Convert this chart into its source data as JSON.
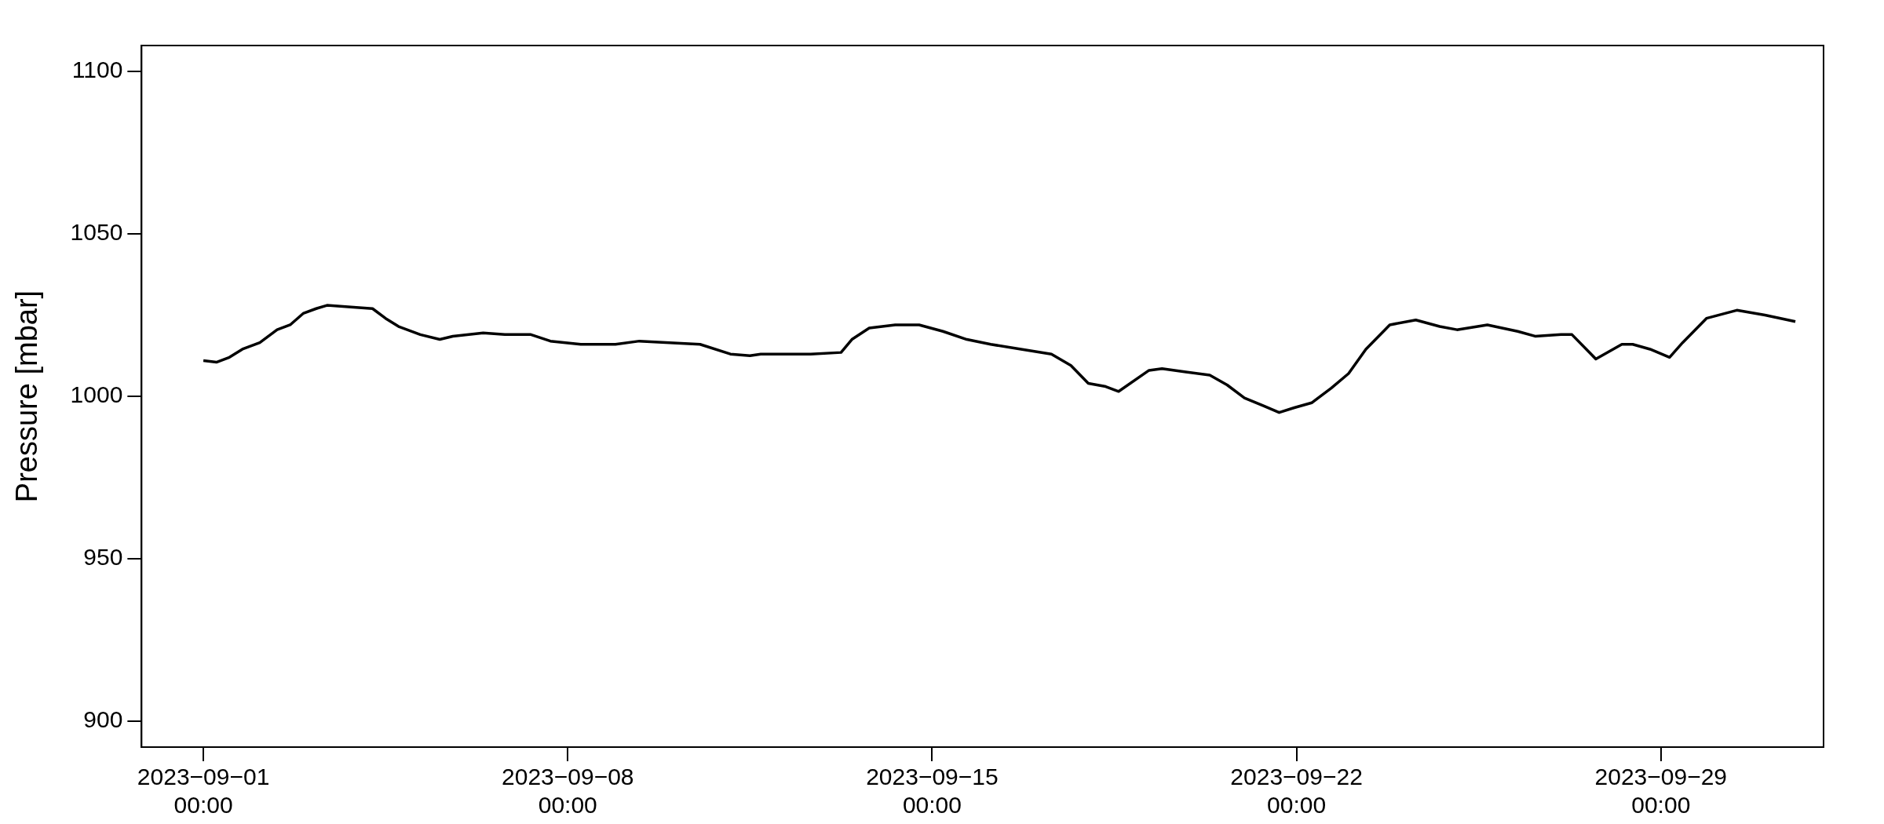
{
  "chart_data": {
    "type": "line",
    "ylabel": "Pressure [mbar]",
    "x": [
      "2023-09-01T00:00",
      "2023-09-01T06:00",
      "2023-09-01T12:00",
      "2023-09-01T18:00",
      "2023-09-02T02:00",
      "2023-09-02T10:00",
      "2023-09-02T16:00",
      "2023-09-02T22:00",
      "2023-09-03T04:00",
      "2023-09-03T09:00",
      "2023-09-03T20:00",
      "2023-09-04T06:00",
      "2023-09-04T12:00",
      "2023-09-04T18:00",
      "2023-09-05T04:00",
      "2023-09-05T13:00",
      "2023-09-05T19:00",
      "2023-09-06T09:00",
      "2023-09-06T19:00",
      "2023-09-07T07:00",
      "2023-09-07T16:00",
      "2023-09-08T06:00",
      "2023-09-08T22:00",
      "2023-09-09T09:00",
      "2023-09-09T23:00",
      "2023-09-10T13:00",
      "2023-09-11T03:00",
      "2023-09-11T12:00",
      "2023-09-11T17:00",
      "2023-09-12T05:00",
      "2023-09-12T16:00",
      "2023-09-13T06:00",
      "2023-09-13T11:00",
      "2023-09-13T19:00",
      "2023-09-14T07:00",
      "2023-09-14T18:00",
      "2023-09-15T05:00",
      "2023-09-15T16:00",
      "2023-09-16T03:00",
      "2023-09-16T17:00",
      "2023-09-17T07:00",
      "2023-09-17T16:00",
      "2023-09-18T00:00",
      "2023-09-18T08:00",
      "2023-09-18T14:00",
      "2023-09-19T04:00",
      "2023-09-19T10:00",
      "2023-09-19T21:00",
      "2023-09-20T08:00",
      "2023-09-20T16:00",
      "2023-09-21T00:00",
      "2023-09-21T09:00",
      "2023-09-21T16:00",
      "2023-09-21T23:00",
      "2023-09-22T07:00",
      "2023-09-22T16:00",
      "2023-09-23T00:00",
      "2023-09-23T08:00",
      "2023-09-23T19:00",
      "2023-09-24T07:00",
      "2023-09-24T18:00",
      "2023-09-25T02:00",
      "2023-09-25T16:00",
      "2023-09-26T06:00",
      "2023-09-26T14:00",
      "2023-09-27T02:00",
      "2023-09-27T07:00",
      "2023-09-27T18:00",
      "2023-09-28T06:00",
      "2023-09-28T11:00",
      "2023-09-28T19:00",
      "2023-09-29T04:00",
      "2023-09-29T10:00",
      "2023-09-29T21:00",
      "2023-09-30T11:00",
      "2023-10-01T00:00",
      "2023-10-01T14:00"
    ],
    "series": [
      {
        "color": "#000000",
        "values": [
          1011,
          1010.5,
          1012,
          1014.5,
          1016.5,
          1020.5,
          1022,
          1025.5,
          1027,
          1028,
          1027.5,
          1027,
          1024,
          1021.5,
          1019,
          1017.5,
          1018.5,
          1019.5,
          1019,
          1019,
          1017,
          1016,
          1016,
          1017,
          1016.5,
          1016,
          1013,
          1012.5,
          1013,
          1013,
          1013,
          1013.5,
          1017.5,
          1021,
          1022,
          1022,
          1020,
          1017.5,
          1016,
          1014.5,
          1013,
          1009.5,
          1004,
          1003,
          1001.5,
          1008,
          1008.5,
          1007.5,
          1006.5,
          1003.5,
          999.5,
          997,
          995,
          996.5,
          998,
          1002.5,
          1007,
          1014.5,
          1022,
          1023.5,
          1021.5,
          1020.5,
          1022,
          1020,
          1018.5,
          1019,
          1019,
          1011.5,
          1016,
          1016,
          1014.5,
          1012,
          1016.5,
          1024,
          1026.5,
          1025,
          1023
        ]
      }
    ],
    "xlim": [
      "2023-08-30T19:30",
      "2023-10-02T03:00"
    ],
    "xticks": [
      {
        "value": "2023-09-01T00:00",
        "label": "2023−09−01\n00:00"
      },
      {
        "value": "2023-09-08T00:00",
        "label": "2023−09−08\n00:00"
      },
      {
        "value": "2023-09-15T00:00",
        "label": "2023−09−15\n00:00"
      },
      {
        "value": "2023-09-22T00:00",
        "label": "2023−09−22\n00:00"
      },
      {
        "value": "2023-09-29T00:00",
        "label": "2023−09−29\n00:00"
      }
    ],
    "ylim": [
      892,
      1108
    ],
    "yticks": [
      900,
      950,
      1000,
      1050,
      1100
    ],
    "grid": false,
    "legend": false,
    "marker": "none",
    "line_style": "solid"
  }
}
